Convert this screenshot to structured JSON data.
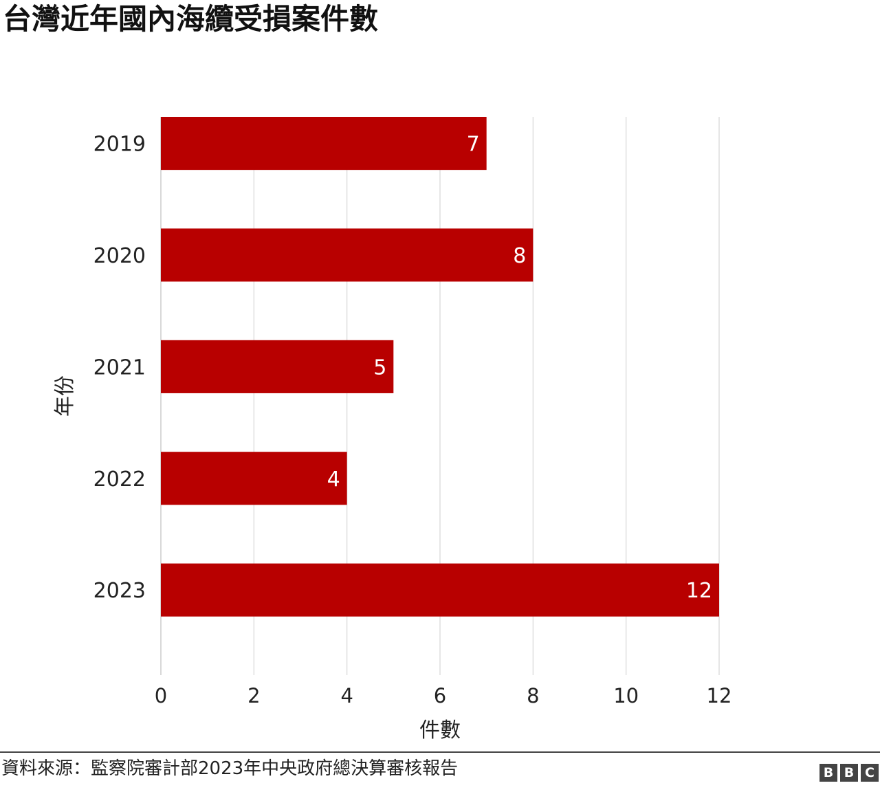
{
  "chart_data": {
    "type": "bar",
    "orientation": "horizontal",
    "title": "台灣近年國內海纜受損案件數",
    "xlabel": "件數",
    "ylabel": "年份",
    "categories": [
      "2019",
      "2020",
      "2021",
      "2022",
      "2023"
    ],
    "values": [
      7,
      8,
      5,
      4,
      12
    ],
    "xlim": [
      0,
      12
    ],
    "xticks": [
      0,
      2,
      4,
      6,
      8,
      10,
      12
    ],
    "grid": true,
    "bar_color": "#b80000",
    "label_color": "#ffffff"
  },
  "footer": {
    "source": "資料來源：監察院審計部2023年中央政府總決算審核報告",
    "logo_letters": [
      "B",
      "B",
      "C"
    ]
  }
}
